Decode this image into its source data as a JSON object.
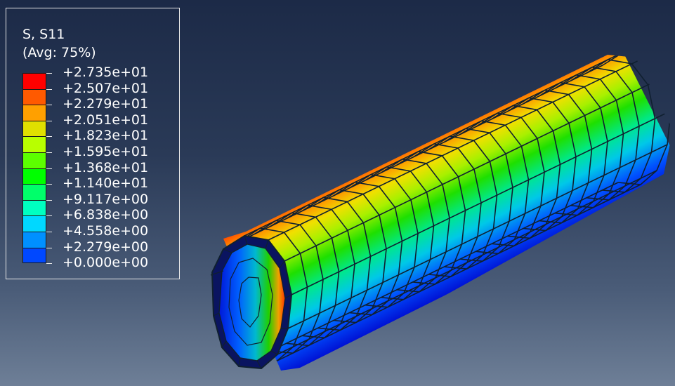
{
  "legend": {
    "title": "S, S11",
    "subtitle": "(Avg: 75%)",
    "values": [
      "+2.735e+01",
      "+2.507e+01",
      "+2.279e+01",
      "+2.051e+01",
      "+1.823e+01",
      "+1.595e+01",
      "+1.368e+01",
      "+1.140e+01",
      "+9.117e+00",
      "+6.838e+00",
      "+4.558e+00",
      "+2.279e+00",
      "+0.000e+00"
    ],
    "colors": [
      "#ff0000",
      "#ff5a00",
      "#ffa000",
      "#e0e000",
      "#b8ff00",
      "#5cff00",
      "#00ff00",
      "#00ff6a",
      "#00ffc0",
      "#00d8ff",
      "#0090ff",
      "#0048ff",
      "#0000ff"
    ]
  }
}
